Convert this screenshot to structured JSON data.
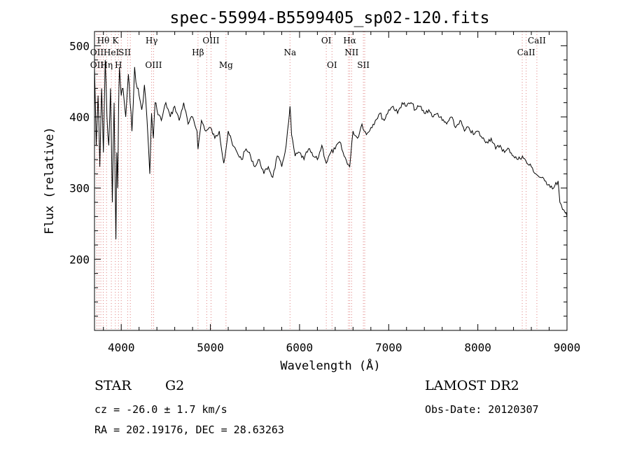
{
  "chart_data": {
    "type": "line",
    "title": "spec-55994-B5599405_sp02-120.fits",
    "xlabel": "Wavelength (Å)",
    "ylabel": "Flux (relative)",
    "xlim": [
      3700,
      9000
    ],
    "ylim": [
      100,
      520
    ],
    "xticks": [
      4000,
      5000,
      6000,
      7000,
      8000,
      9000
    ],
    "yticks": [
      200,
      300,
      400,
      500
    ],
    "line_color": "#000000",
    "marker_line_color": "#e08080",
    "grid": false,
    "series": [
      {
        "x": [
          3700,
          3720,
          3740,
          3760,
          3780,
          3800,
          3820,
          3840,
          3860,
          3880,
          3900,
          3920,
          3940,
          3950,
          3960,
          3970,
          3980,
          4000,
          4020,
          4050,
          4080,
          4100,
          4120,
          4150,
          4180,
          4200,
          4230,
          4260,
          4290,
          4320,
          4340,
          4360,
          4380,
          4400,
          4450,
          4500,
          4550,
          4600,
          4650,
          4700,
          4750,
          4800,
          4850,
          4861,
          4900,
          4950,
          5000,
          5050,
          5100,
          5150,
          5175,
          5200,
          5250,
          5300,
          5350,
          5400,
          5450,
          5500,
          5550,
          5600,
          5650,
          5700,
          5750,
          5800,
          5850,
          5880,
          5893,
          5910,
          5950,
          6000,
          6050,
          6100,
          6150,
          6200,
          6250,
          6300,
          6350,
          6400,
          6450,
          6500,
          6563,
          6600,
          6650,
          6700,
          6750,
          6800,
          6850,
          6900,
          6950,
          7000,
          7050,
          7100,
          7150,
          7200,
          7250,
          7300,
          7350,
          7400,
          7450,
          7500,
          7550,
          7600,
          7650,
          7700,
          7750,
          7800,
          7850,
          7900,
          7950,
          8000,
          8050,
          8100,
          8150,
          8200,
          8250,
          8300,
          8350,
          8400,
          8450,
          8500,
          8550,
          8600,
          8650,
          8700,
          8750,
          8800,
          8850,
          8900,
          8920,
          8950,
          8980,
          9000
        ],
        "y": [
          470,
          360,
          430,
          330,
          440,
          350,
          480,
          400,
          360,
          440,
          280,
          420,
          228,
          350,
          300,
          410,
          470,
          430,
          440,
          400,
          460,
          420,
          380,
          470,
          440,
          430,
          410,
          445,
          395,
          320,
          405,
          370,
          420,
          410,
          395,
          420,
          400,
          415,
          395,
          420,
          390,
          400,
          380,
          355,
          395,
          380,
          385,
          370,
          380,
          335,
          355,
          380,
          360,
          350,
          340,
          355,
          345,
          330,
          340,
          320,
          330,
          315,
          345,
          330,
          360,
          395,
          415,
          375,
          345,
          350,
          340,
          355,
          345,
          340,
          360,
          335,
          350,
          355,
          365,
          345,
          330,
          380,
          370,
          390,
          375,
          385,
          395,
          405,
          395,
          410,
          415,
          405,
          420,
          415,
          420,
          410,
          415,
          405,
          410,
          400,
          405,
          395,
          390,
          400,
          385,
          395,
          380,
          385,
          375,
          380,
          370,
          365,
          370,
          355,
          360,
          350,
          355,
          345,
          340,
          345,
          335,
          330,
          320,
          315,
          310,
          305,
          300,
          310,
          280,
          270,
          265,
          260
        ]
      }
    ],
    "line_markers": [
      {
        "label": "Hθ",
        "x": 3798,
        "row": 1
      },
      {
        "label": "K",
        "x": 3934,
        "row": 1
      },
      {
        "label": "Hγ",
        "x": 4341,
        "row": 1
      },
      {
        "label": "OIII",
        "x": 5007,
        "row": 1
      },
      {
        "label": "OI",
        "x": 6300,
        "row": 1
      },
      {
        "label": "Hα",
        "x": 6563,
        "row": 1
      },
      {
        "label": "CaII",
        "x": 8662,
        "row": 1
      },
      {
        "label": "OII",
        "x": 3727,
        "row": 2
      },
      {
        "label": "HeI",
        "x": 3889,
        "row": 2
      },
      {
        "label": "S",
        "x": 4000,
        "row": 2
      },
      {
        "label": "II",
        "x": 4072,
        "row": 2
      },
      {
        "label": "Hβ",
        "x": 4861,
        "row": 2
      },
      {
        "label": "Na",
        "x": 5893,
        "row": 2
      },
      {
        "label": "NII",
        "x": 6584,
        "row": 2
      },
      {
        "label": "CaII",
        "x": 8542,
        "row": 2
      },
      {
        "label": "OII",
        "x": 3727,
        "row": 3
      },
      {
        "label": "Hη",
        "x": 3835,
        "row": 3
      },
      {
        "label": "H",
        "x": 3969,
        "row": 3
      },
      {
        "label": "OIII",
        "x": 4363,
        "row": 3
      },
      {
        "label": "Mg",
        "x": 5175,
        "row": 3
      },
      {
        "label": "OI",
        "x": 6364,
        "row": 3
      },
      {
        "label": "SII",
        "x": 6716,
        "row": 3
      }
    ],
    "extra_marker_lines": [
      3750,
      3771,
      4102,
      4959,
      6548,
      6731,
      8498
    ]
  },
  "info": {
    "object_type": "STAR",
    "subclass": "G2",
    "redshift": "cz = -26.0 ± 1.7 km/s",
    "coordinates": "RA = 202.19176, DEC =  28.63263",
    "survey": "LAMOST DR2",
    "obs_date": "Obs-Date: 20120307"
  }
}
